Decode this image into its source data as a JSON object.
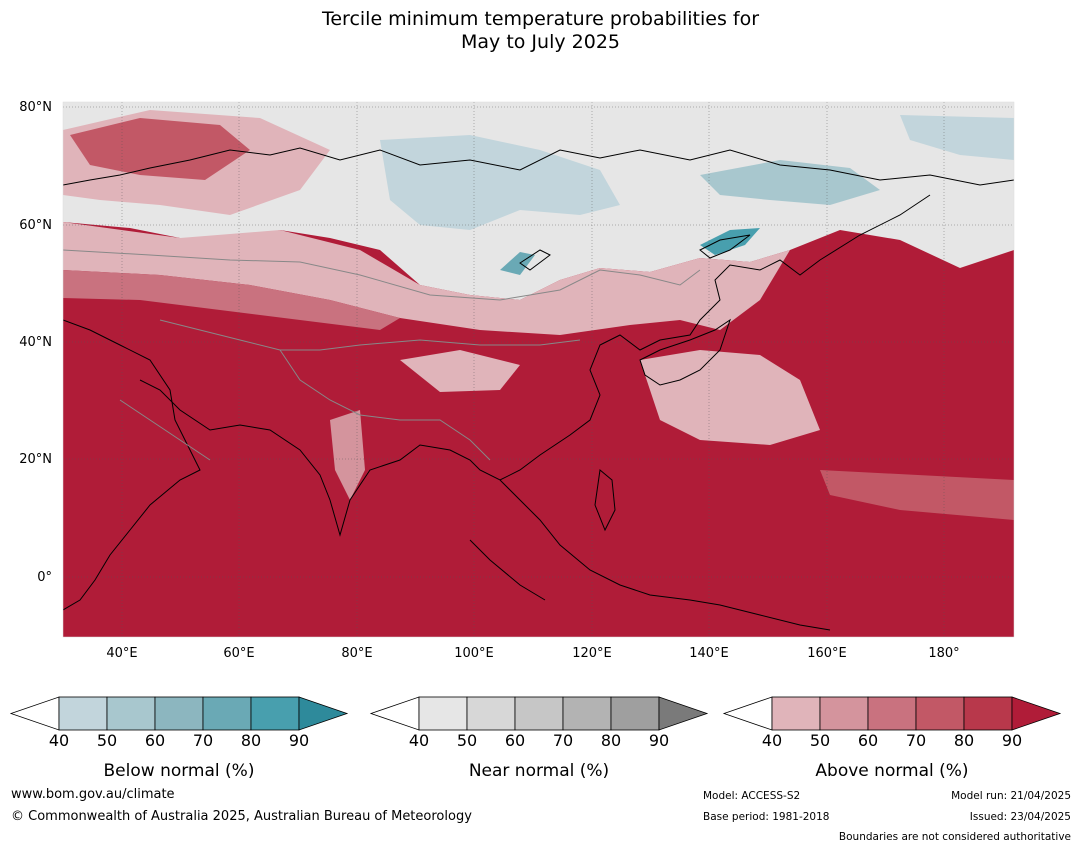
{
  "title": {
    "line1": "Tercile minimum temperature probabilities for",
    "line2": "May to July 2025"
  },
  "map": {
    "lat_labels": [
      "80°N",
      "60°N",
      "40°N",
      "20°N",
      "0°"
    ],
    "lon_labels": [
      "40°E",
      "60°E",
      "80°E",
      "100°E",
      "120°E",
      "140°E",
      "160°E",
      "180°"
    ],
    "region": "Asia and western Pacific"
  },
  "colorbars": [
    {
      "label": "Below normal (%)",
      "ticks": [
        "40",
        "50",
        "60",
        "70",
        "80",
        "90"
      ],
      "colors": [
        "#ffffff",
        "#c2d5dc",
        "#a8c7ce",
        "#8cb6bf",
        "#6aa9b5",
        "#489fae",
        "#2e8a9b"
      ]
    },
    {
      "label": "Near normal (%)",
      "ticks": [
        "40",
        "50",
        "60",
        "70",
        "80",
        "90"
      ],
      "colors": [
        "#ffffff",
        "#e6e6e6",
        "#d7d7d7",
        "#c6c6c6",
        "#b3b3b3",
        "#9f9f9f",
        "#7a7a7a"
      ]
    },
    {
      "label": "Above normal (%)",
      "ticks": [
        "40",
        "50",
        "60",
        "70",
        "80",
        "90"
      ],
      "colors": [
        "#ffffff",
        "#e0b4ba",
        "#d4949d",
        "#c9727f",
        "#c25866",
        "#b8384b",
        "#b01c38"
      ]
    }
  ],
  "footer": {
    "website": "www.bom.gov.au/climate",
    "copyright": "© Commonwealth of Australia 2025, Australian Bureau of Meteorology",
    "model": "Model: ACCESS-S2",
    "base_period": "Base period: 1981-2018",
    "model_run": "Model run: 21/04/2025",
    "issued": "Issued: 23/04/2025",
    "disclaimer": "Boundaries are not considered authoritative"
  }
}
